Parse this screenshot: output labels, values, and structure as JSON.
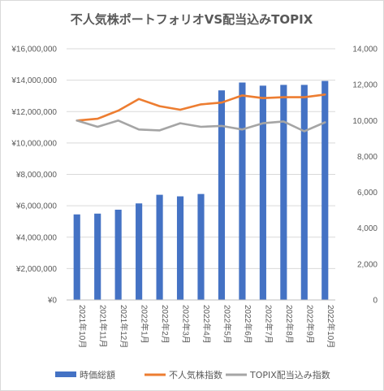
{
  "chart_data": {
    "type": "bar+line",
    "title": "不人気株ポートフォリオVS配当込みTOPIX",
    "categories": [
      "2021年10月",
      "2021年11月",
      "2021年12月",
      "2022年1月",
      "2022年2月",
      "2022年3月",
      "2022年4月",
      "2022年5月",
      "2022年6月",
      "2022年7月",
      "2022年8月",
      "2022年9月",
      "2022年10月"
    ],
    "y_left": {
      "range": [
        0,
        16000000
      ],
      "ticks": [
        0,
        2000000,
        4000000,
        6000000,
        8000000,
        10000000,
        12000000,
        14000000,
        16000000
      ],
      "tick_labels": [
        "¥0",
        "¥2,000,000",
        "¥4,000,000",
        "¥6,000,000",
        "¥8,000,000",
        "¥10,000,000",
        "¥12,000,000",
        "¥14,000,000",
        "¥16,000,000"
      ]
    },
    "y_right": {
      "range": [
        0,
        14000
      ],
      "ticks": [
        0,
        2000,
        4000,
        6000,
        8000,
        10000,
        12000,
        14000
      ],
      "tick_labels": [
        "0",
        "2,000",
        "4,000",
        "6,000",
        "8,000",
        "10,000",
        "12,000",
        "14,000"
      ]
    },
    "series": [
      {
        "name": "時価総額",
        "kind": "bar",
        "axis": "left",
        "color": "#4472c4",
        "values": [
          5450000,
          5500000,
          5750000,
          6150000,
          6700000,
          6600000,
          6750000,
          13350000,
          13850000,
          13650000,
          13700000,
          13700000,
          13950000
        ]
      },
      {
        "name": "不人気株指数",
        "kind": "line",
        "axis": "right",
        "color": "#ed7d31",
        "values": [
          10000,
          10100,
          10550,
          11200,
          10800,
          10600,
          10900,
          11000,
          11400,
          11250,
          11300,
          11300,
          11450
        ]
      },
      {
        "name": "TOPIX配当込み指数",
        "kind": "line",
        "axis": "right",
        "color": "#a5a5a5",
        "values": [
          10000,
          9650,
          10000,
          9500,
          9450,
          9850,
          9650,
          9700,
          9500,
          9850,
          9950,
          9400,
          9900
        ]
      }
    ],
    "grid": true,
    "legend": "bottom"
  }
}
